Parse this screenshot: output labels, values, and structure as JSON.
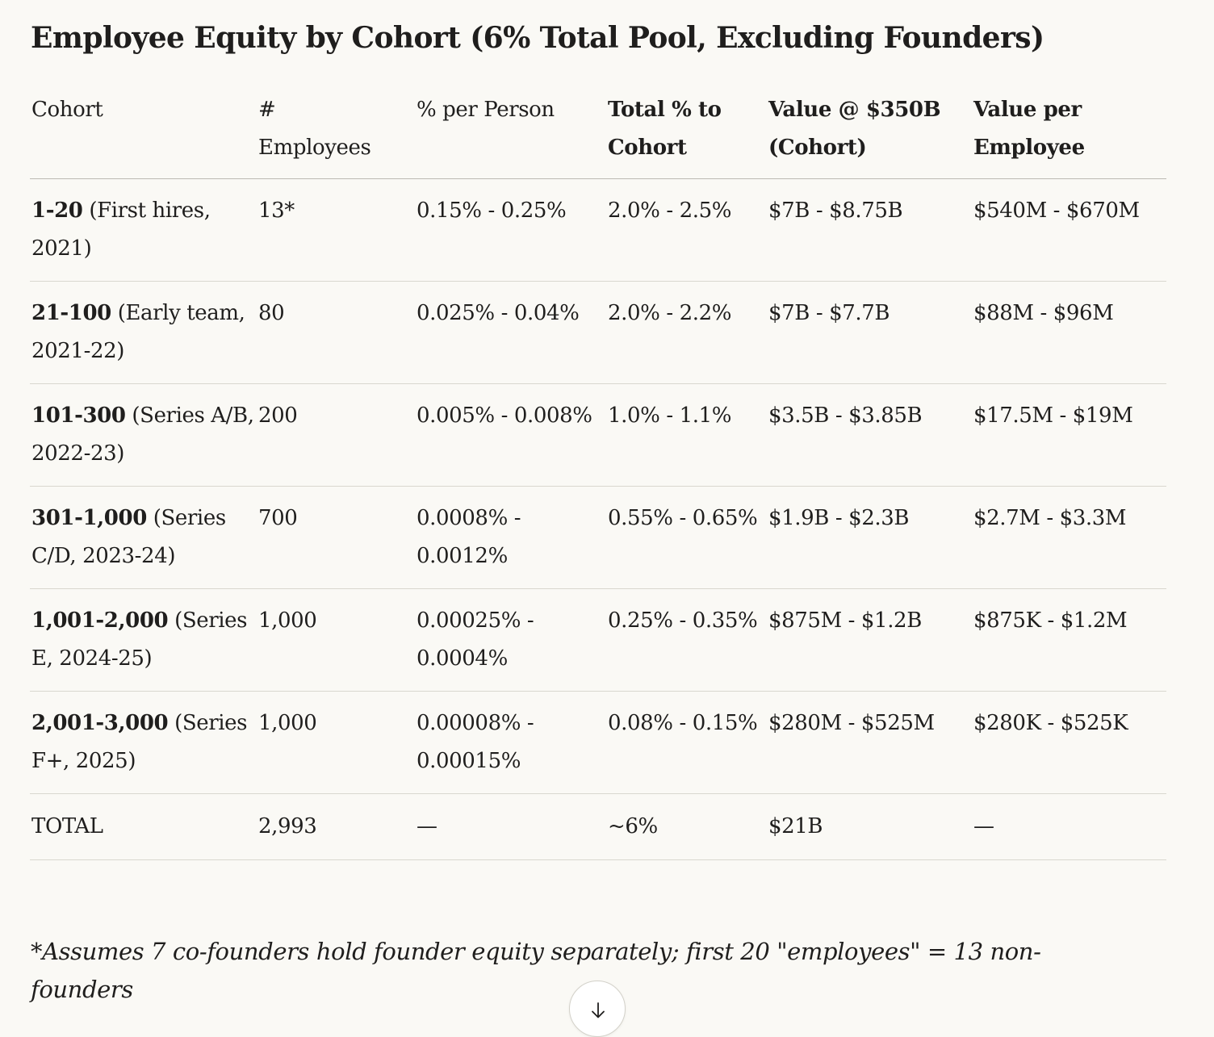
{
  "title": "Employee Equity by Cohort (6% Total Pool, Excluding Founders)",
  "table": {
    "headers": {
      "cohort": "Cohort",
      "employees_a": "#",
      "employees_b": "Employees",
      "pct_person": "% per Person",
      "total_pct_a": "Total % to",
      "total_pct_b": "Cohort",
      "value_cohort_a": "Value @ $350B",
      "value_cohort_b": "(Cohort)",
      "value_employee_a": "Value per",
      "value_employee_b": "Employee"
    },
    "rows": [
      {
        "cohort_range": "1-20",
        "cohort_desc": " (First hires, 2021)",
        "employees": "13*",
        "pct_person": "0.15% - 0.25%",
        "total_pct": "2.0% - 2.5%",
        "value_cohort": "$7B - $8.75B",
        "value_employee": "$540M - $670M"
      },
      {
        "cohort_range": "21-100",
        "cohort_desc": " (Early team, 2021-22)",
        "employees": "80",
        "pct_person": "0.025% - 0.04%",
        "total_pct": "2.0% - 2.2%",
        "value_cohort": "$7B - $7.7B",
        "value_employee": "$88M - $96M"
      },
      {
        "cohort_range": "101-300",
        "cohort_desc": " (Series A/B, 2022-23)",
        "employees": "200",
        "pct_person": "0.005% - 0.008%",
        "total_pct": "1.0% - 1.1%",
        "value_cohort": "$3.5B - $3.85B",
        "value_employee": "$17.5M - $19M"
      },
      {
        "cohort_range": "301-1,000",
        "cohort_desc": " (Series C/D, 2023-24)",
        "employees": "700",
        "pct_person": "0.0008% - 0.0012%",
        "total_pct": "0.55% - 0.65%",
        "value_cohort": "$1.9B - $2.3B",
        "value_employee": "$2.7M - $3.3M"
      },
      {
        "cohort_range": "1,001-2,000",
        "cohort_desc": " (Series E, 2024-25)",
        "employees": "1,000",
        "pct_person": "0.00025% - 0.0004%",
        "total_pct": "0.25% - 0.35%",
        "value_cohort": "$875M - $1.2B",
        "value_employee": "$875K - $1.2M"
      },
      {
        "cohort_range": "2,001-3,000",
        "cohort_desc": " (Series F+, 2025)",
        "employees": "1,000",
        "pct_person": "0.00008% - 0.00015%",
        "total_pct": "0.08% - 0.15%",
        "value_cohort": "$280M - $525M",
        "value_employee": "$280K - $525K"
      }
    ],
    "total": {
      "label": "TOTAL",
      "employees": "2,993",
      "pct_person": "—",
      "total_pct": "~6%",
      "value_cohort": "$21B",
      "value_employee": "—"
    }
  },
  "footnote": "*Assumes 7 co-founders hold founder equity separately; first 20 \"employees\" = 13 non-founders",
  "scroll_button": {
    "icon": "arrow-down-icon"
  }
}
